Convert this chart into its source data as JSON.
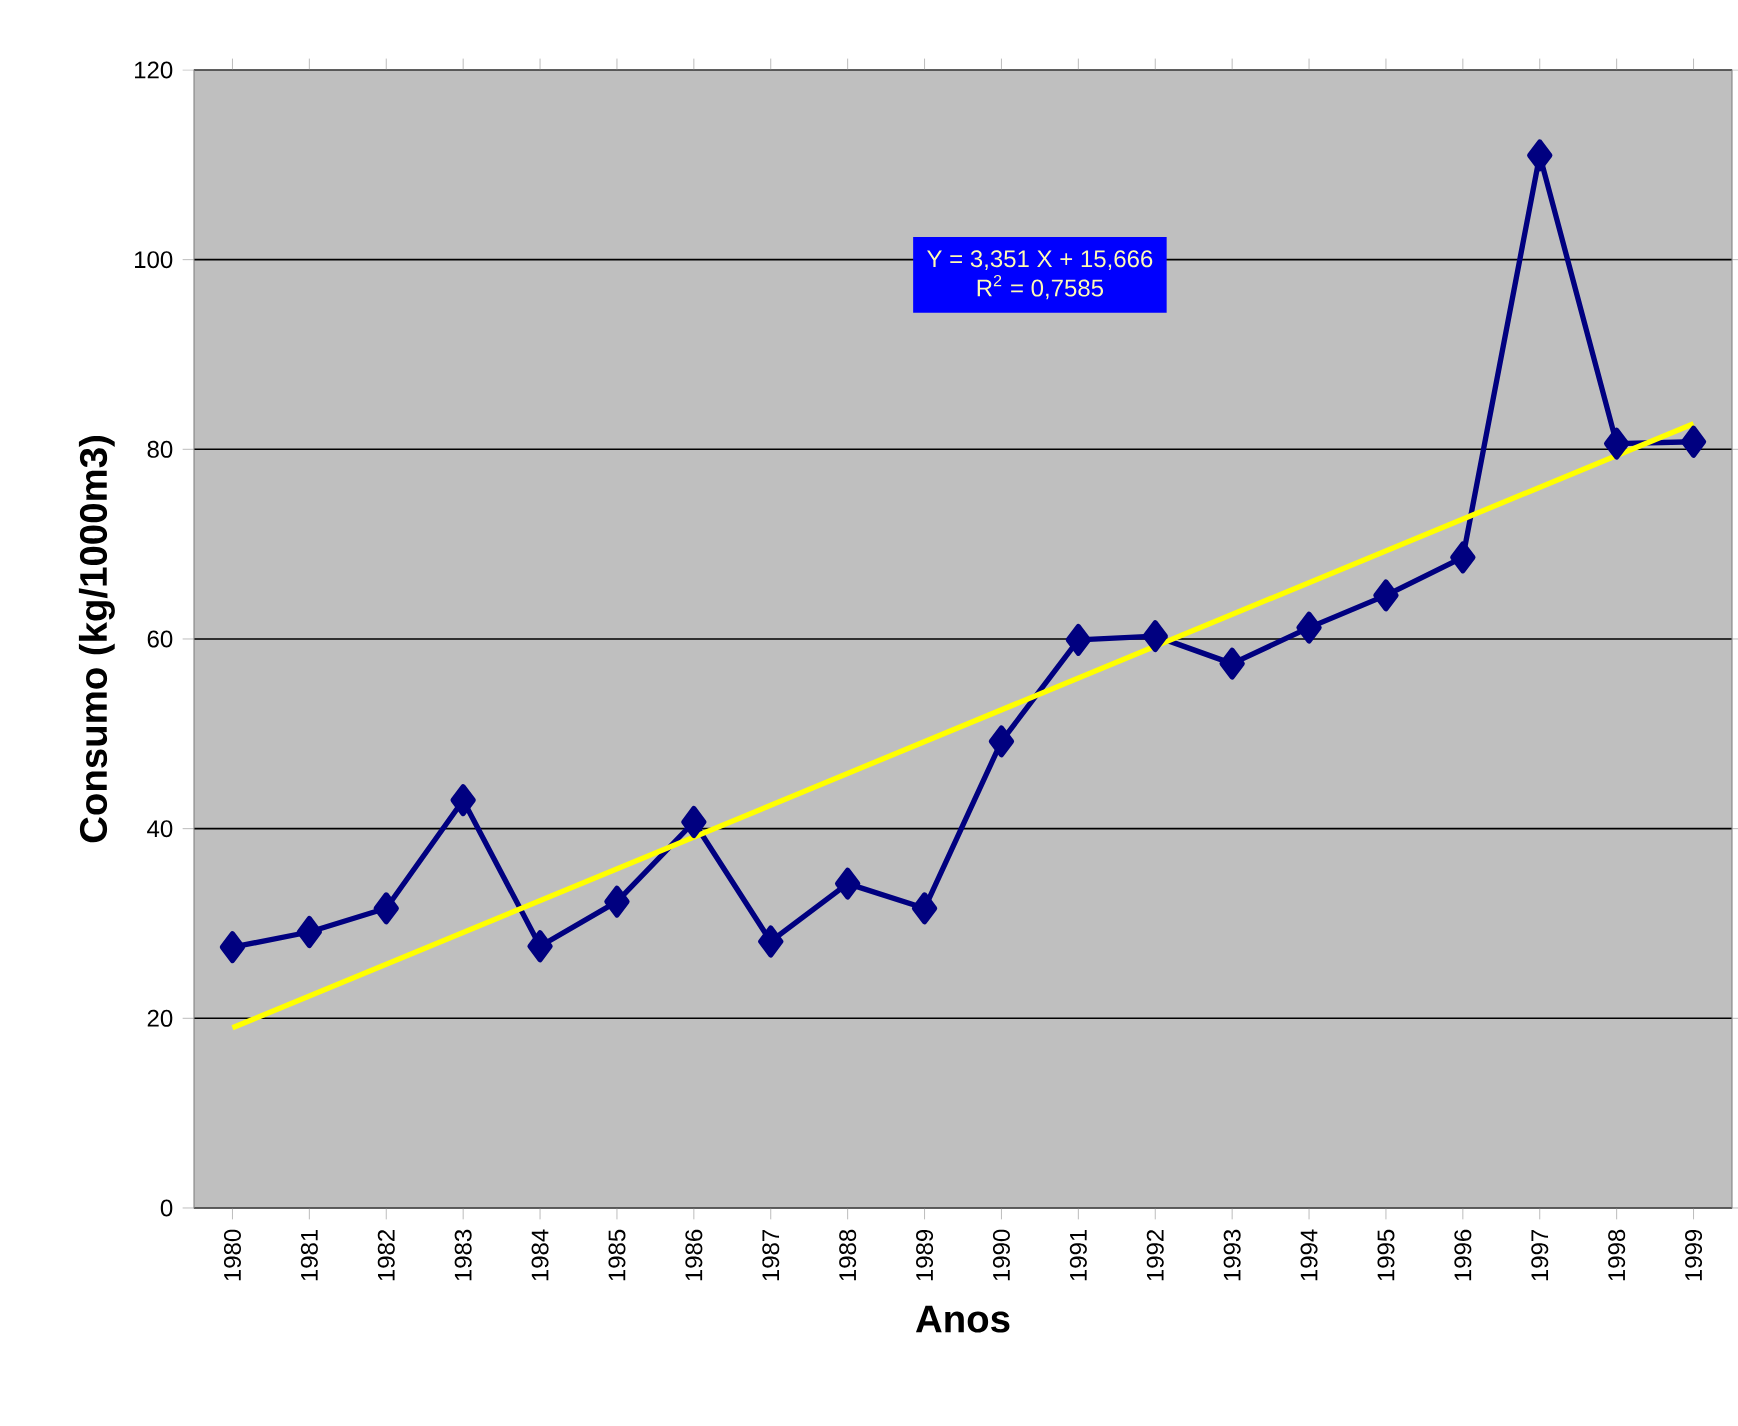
{
  "chart_data": {
    "type": "line",
    "xlabel": "Anos",
    "ylabel": "Consumo (kg/1000m3)",
    "x": [
      1980,
      1981,
      1982,
      1983,
      1984,
      1985,
      1986,
      1987,
      1988,
      1989,
      1990,
      1991,
      1992,
      1993,
      1994,
      1995,
      1996,
      1997,
      1998,
      1999
    ],
    "series": [
      {
        "color": "#000080",
        "marker": "diamond",
        "values": [
          27.5,
          29.1,
          31.6,
          43.0,
          27.6,
          32.3,
          40.7,
          28.1,
          34.2,
          31.6,
          49.2,
          59.9,
          60.3,
          57.4,
          61.2,
          64.6,
          68.6,
          111.0,
          80.6,
          80.8
        ]
      },
      {
        "color": "#ffff00",
        "marker": "none",
        "x": [
          1980,
          1999
        ],
        "values": [
          19.0,
          82.7
        ]
      }
    ],
    "xlim": [
      1979.5,
      1999.5
    ],
    "xticks": [
      1980,
      1981,
      1982,
      1983,
      1984,
      1985,
      1986,
      1987,
      1988,
      1989,
      1990,
      1991,
      1992,
      1993,
      1994,
      1995,
      1996,
      1997,
      1998,
      1999
    ],
    "ylim": [
      0,
      120
    ],
    "yticks": [
      0,
      20,
      40,
      60,
      80,
      100,
      120
    ],
    "grid": "y",
    "annotations": [
      "Y = 3,351 X + 15,666",
      "R$^{2}$ = 0,7585"
    ]
  }
}
